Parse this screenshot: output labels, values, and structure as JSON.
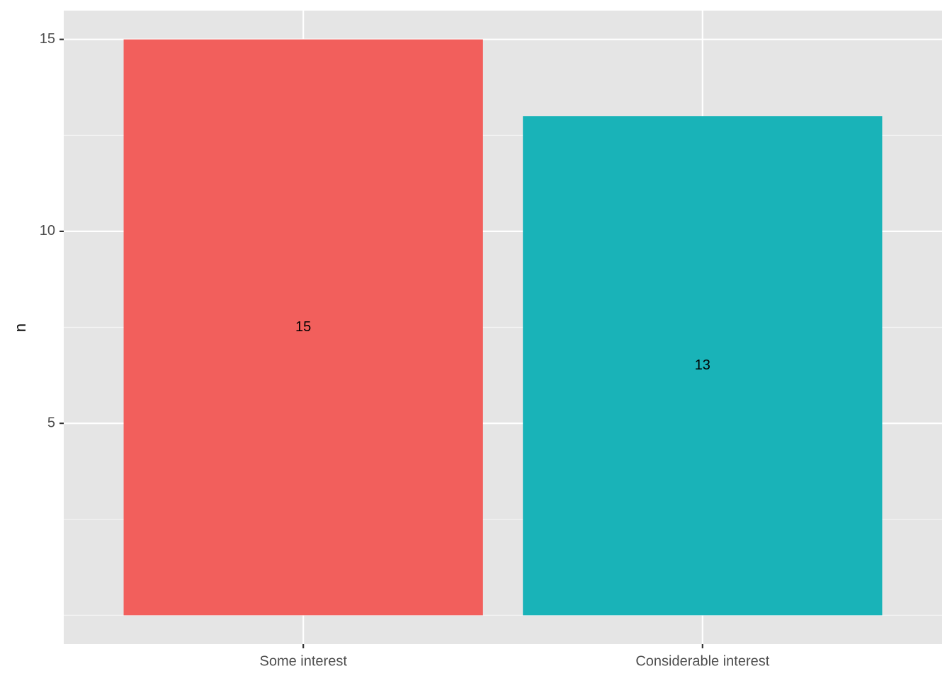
{
  "chart_data": {
    "type": "bar",
    "y_label": "n",
    "categories": [
      "Some interest",
      "Considerable interest"
    ],
    "values": [
      15,
      13
    ],
    "colors": [
      "#f25f5c",
      "#19b3b8"
    ],
    "ylim": [
      -0.75,
      15.75
    ],
    "yticks": [
      5,
      10,
      15
    ],
    "y_minor_grid": [
      0,
      2.5,
      7.5,
      12.5
    ],
    "grid": true
  }
}
